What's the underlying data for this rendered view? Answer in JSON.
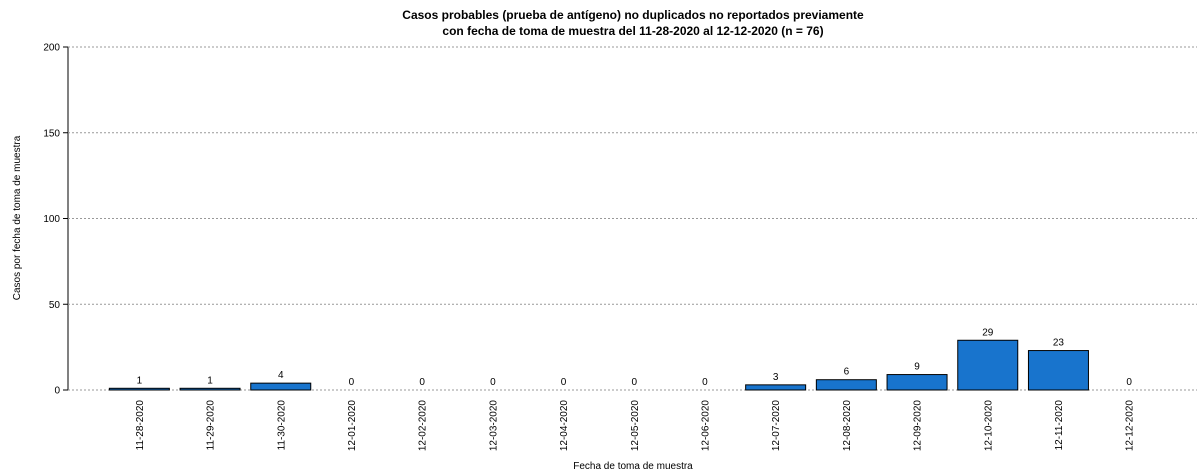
{
  "chart_data": {
    "type": "bar",
    "title": [
      "Casos probables (prueba de antígeno) no duplicados no reportados previamente",
      "con fecha de toma de muestra del 11-28-2020 al 12-12-2020 (n = 76)"
    ],
    "x_label": "Fecha de toma de muestra",
    "y_label": "Casos por fecha de toma de muestra",
    "categories": [
      "11-28-2020",
      "11-29-2020",
      "11-30-2020",
      "12-01-2020",
      "12-02-2020",
      "12-03-2020",
      "12-04-2020",
      "12-05-2020",
      "12-06-2020",
      "12-07-2020",
      "12-08-2020",
      "12-09-2020",
      "12-10-2020",
      "12-11-2020",
      "12-12-2020"
    ],
    "values": [
      1,
      1,
      4,
      0,
      0,
      0,
      0,
      0,
      0,
      3,
      6,
      9,
      29,
      23,
      0
    ],
    "color": "#1874cd",
    "ylim": [
      0,
      200
    ],
    "yticks": [
      0,
      50,
      100,
      150,
      200
    ],
    "grid": true
  }
}
